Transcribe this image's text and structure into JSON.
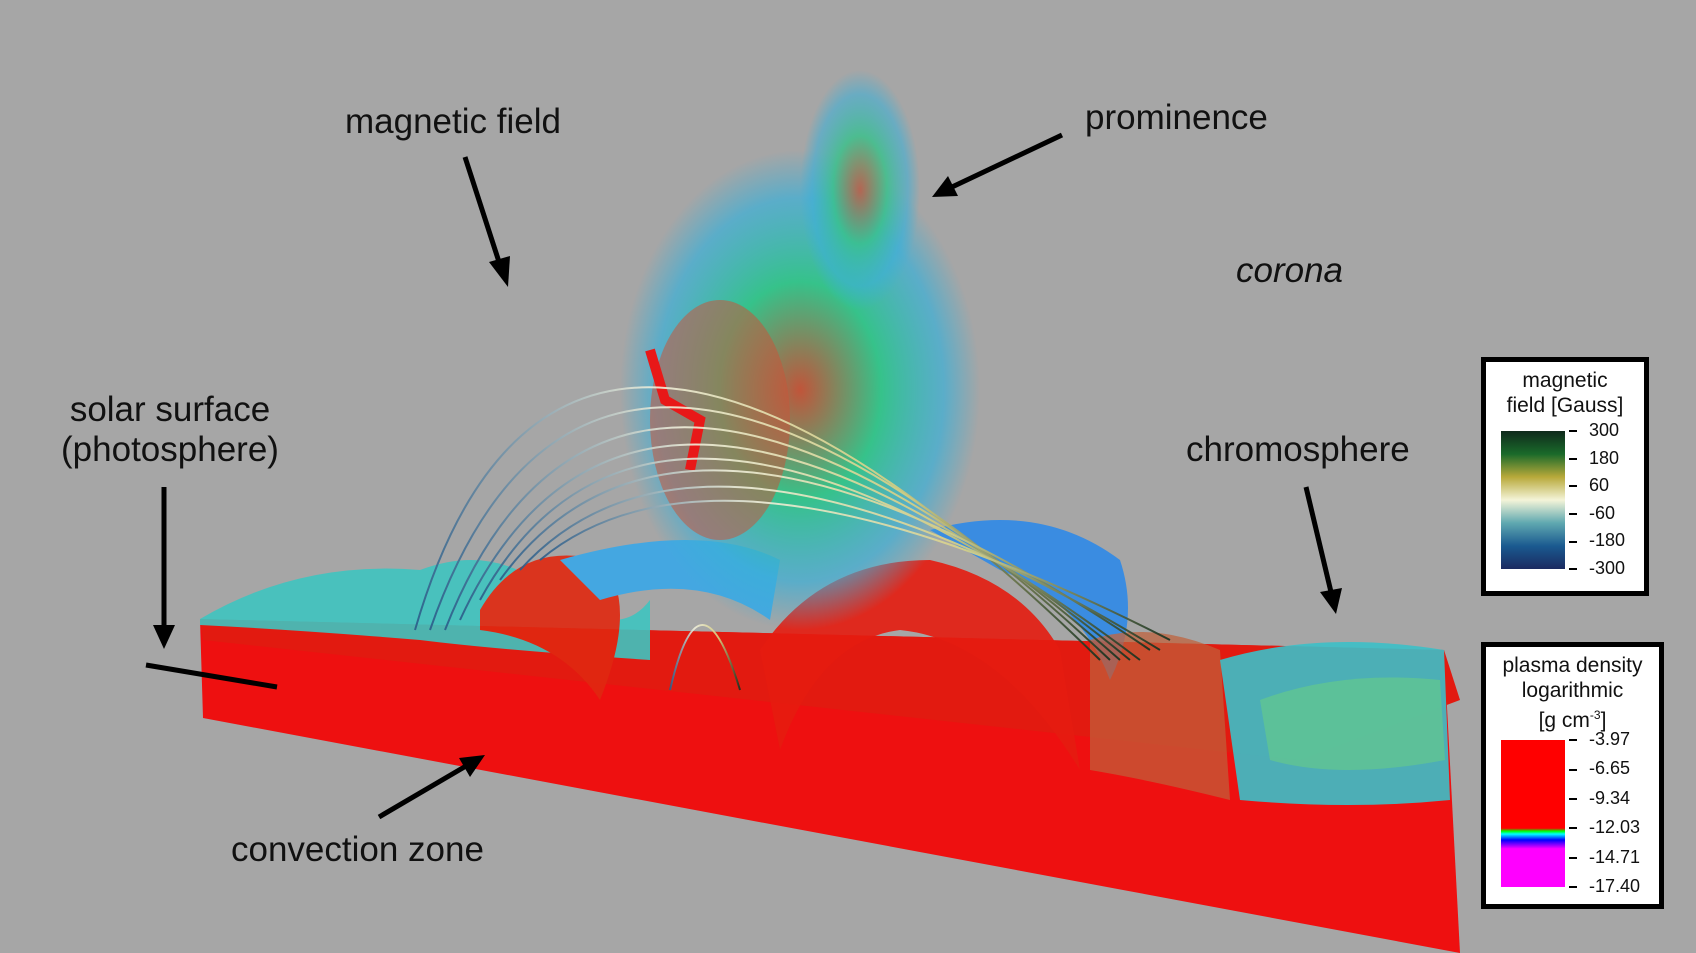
{
  "labels": {
    "magnetic_field": "magnetic field",
    "prominence": "prominence",
    "corona": "corona",
    "solar_surface": "solar surface",
    "photosphere": "(photosphere)",
    "chromosphere": "chromosphere",
    "convection_zone": "convection zone"
  },
  "legend_magnetic": {
    "title_line1": "magnetic",
    "title_line2": "field [Gauss]",
    "ticks": [
      "300",
      "180",
      "60",
      "-60",
      "-180",
      "-300"
    ],
    "colors": [
      "#0f2a1c",
      "#1a6a2a",
      "#b8a93a",
      "#f4f4d8",
      "#5fa8b0",
      "#1a5a90",
      "#1b2a60"
    ]
  },
  "legend_density": {
    "title_line1": "plasma density",
    "title_line2": "logarithmic",
    "title_line3": "[g cm",
    "title_sup": "-3",
    "title_end": "]",
    "ticks": [
      "-3.97",
      "-6.65",
      "-9.34",
      "-12.03",
      "-14.71",
      "-17.40"
    ],
    "colors": [
      "#ff0000",
      "#00ff00",
      "#00ffff",
      "#0000ff",
      "#ff00ff"
    ]
  }
}
